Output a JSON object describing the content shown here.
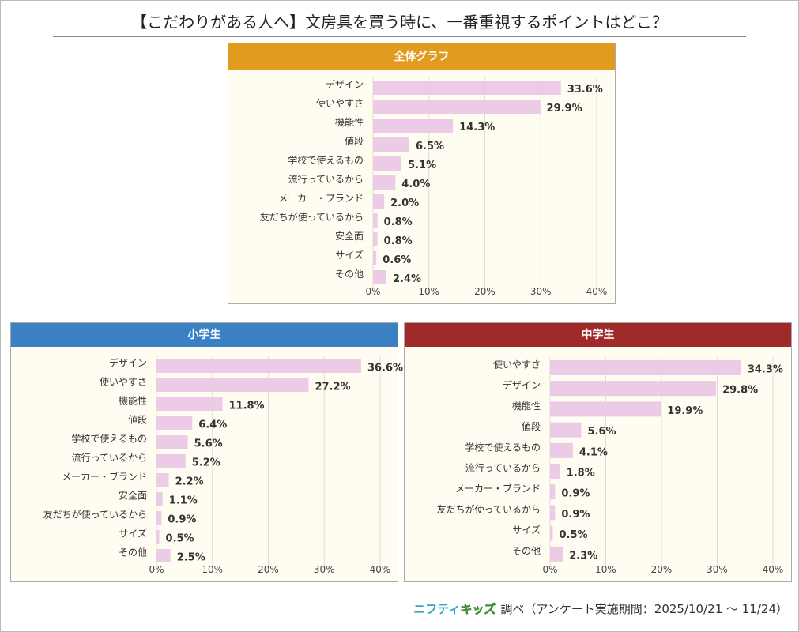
{
  "title": "【こだわりがある人へ】文房具を買う時に、一番重視するポイントはどこ？",
  "colors": {
    "bar": "#ebcbe6",
    "grid": "#e0ddd0",
    "overall_header": "#e19b1e",
    "elementary_header": "#3a80c2",
    "junior_header": "#a02a2a"
  },
  "footer": {
    "logo_part1": "ニフティ",
    "logo_part2": "キッズ",
    "text": "調べ（アンケート実施期間：2025/10/21 ～ 11/24）"
  },
  "chart_data": [
    {
      "type": "bar",
      "orientation": "horizontal",
      "title": "全体グラフ",
      "xlim": [
        0,
        40
      ],
      "ticks": [
        "0%",
        "10%",
        "20%",
        "30%",
        "40%"
      ],
      "grid": true,
      "categories": [
        "デザイン",
        "使いやすさ",
        "機能性",
        "値段",
        "学校で使えるもの",
        "流行っているから",
        "メーカー・ブランド",
        "友だちが使っているから",
        "安全面",
        "サイズ",
        "その他"
      ],
      "values": [
        33.6,
        29.9,
        14.3,
        6.5,
        5.1,
        4.0,
        2.0,
        0.8,
        0.8,
        0.6,
        2.4
      ],
      "labels": [
        "33.6%",
        "29.9%",
        "14.3%",
        "6.5%",
        "5.1%",
        "4.0%",
        "2.0%",
        "0.8%",
        "0.8%",
        "0.6%",
        "2.4%"
      ]
    },
    {
      "type": "bar",
      "orientation": "horizontal",
      "title": "小学生",
      "xlim": [
        0,
        40
      ],
      "ticks": [
        "0%",
        "10%",
        "20%",
        "30%",
        "40%"
      ],
      "grid": true,
      "categories": [
        "デザイン",
        "使いやすさ",
        "機能性",
        "値段",
        "学校で使えるもの",
        "流行っているから",
        "メーカー・ブランド",
        "安全面",
        "友だちが使っているから",
        "サイズ",
        "その他"
      ],
      "values": [
        36.6,
        27.2,
        11.8,
        6.4,
        5.6,
        5.2,
        2.2,
        1.1,
        0.9,
        0.5,
        2.5
      ],
      "labels": [
        "36.6%",
        "27.2%",
        "11.8%",
        "6.4%",
        "5.6%",
        "5.2%",
        "2.2%",
        "1.1%",
        "0.9%",
        "0.5%",
        "2.5%"
      ]
    },
    {
      "type": "bar",
      "orientation": "horizontal",
      "title": "中学生",
      "xlim": [
        0,
        40
      ],
      "ticks": [
        "0%",
        "10%",
        "20%",
        "30%",
        "40%"
      ],
      "grid": true,
      "categories": [
        "使いやすさ",
        "デザイン",
        "機能性",
        "値段",
        "学校で使えるもの",
        "流行っているから",
        "メーカー・ブランド",
        "友だちが使っているから",
        "サイズ",
        "その他"
      ],
      "values": [
        34.3,
        29.8,
        19.9,
        5.6,
        4.1,
        1.8,
        0.9,
        0.9,
        0.5,
        2.3
      ],
      "labels": [
        "34.3%",
        "29.8%",
        "19.9%",
        "5.6%",
        "4.1%",
        "1.8%",
        "0.9%",
        "0.9%",
        "0.5%",
        "2.3%"
      ]
    }
  ]
}
